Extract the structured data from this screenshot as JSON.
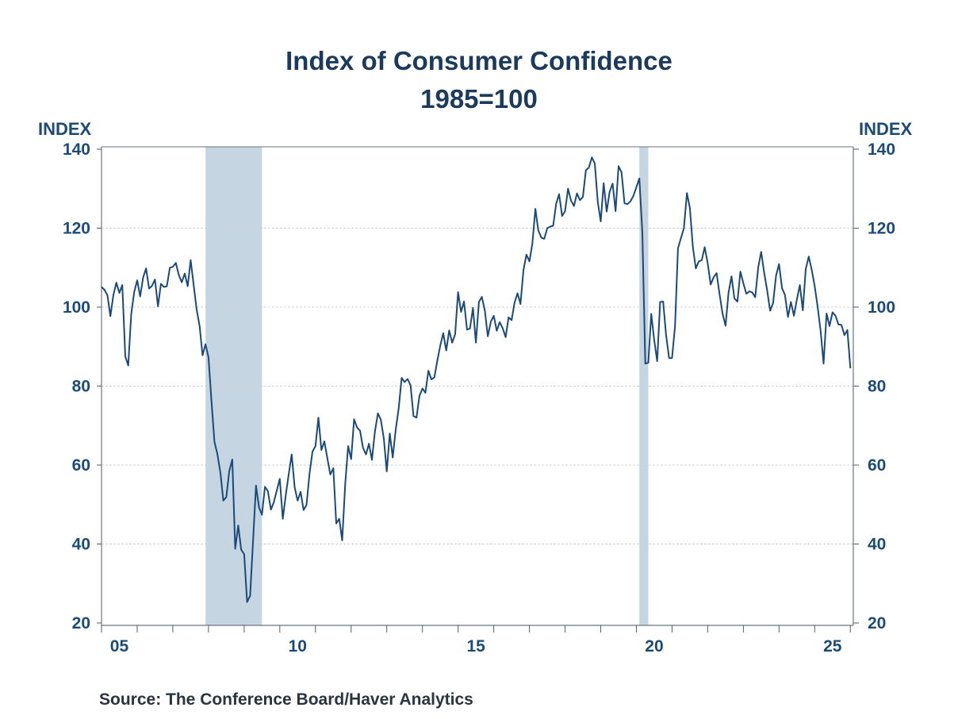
{
  "title": "Index of Consumer Confidence",
  "subtitle": "1985=100",
  "source": "Source:  The Conference Board/Haver Analytics",
  "colors": {
    "line": "#1b4a78",
    "recession": "#c5d6e2",
    "text": "#1d4b78"
  },
  "chart_data": {
    "type": "line",
    "title": "Index of Consumer Confidence",
    "subtitle": "1985=100",
    "ylabel_left": "INDEX",
    "ylabel_right": "INDEX",
    "ylim": [
      20,
      140
    ],
    "yticks": [
      20,
      40,
      60,
      80,
      100,
      120,
      140
    ],
    "xlim": [
      "2005-01",
      "2026-02"
    ],
    "xtick_labels": [
      {
        "year": 2005,
        "label": "05"
      },
      {
        "year": 2010,
        "label": "10"
      },
      {
        "year": 2015,
        "label": "15"
      },
      {
        "year": 2020,
        "label": "20"
      },
      {
        "year": 2025,
        "label": "25"
      }
    ],
    "grid": "horizontal dashed",
    "recessions": [
      {
        "start": "2007-12",
        "end": "2009-06"
      },
      {
        "start": "2020-02",
        "end": "2020-04"
      }
    ],
    "frequency": "monthly",
    "start": "2005-01",
    "values": [
      105.1,
      104.4,
      103.0,
      97.7,
      103.1,
      106.2,
      103.6,
      105.6,
      87.5,
      85.2,
      98.3,
      103.8,
      106.8,
      102.7,
      107.5,
      109.8,
      104.7,
      105.4,
      107.0,
      100.2,
      105.9,
      105.1,
      105.3,
      110.0,
      110.2,
      111.2,
      108.2,
      106.3,
      108.5,
      105.3,
      111.9,
      105.6,
      99.5,
      95.2,
      87.8,
      90.6,
      87.3,
      76.4,
      65.9,
      62.8,
      58.1,
      51.0,
      51.9,
      58.5,
      61.4,
      38.8,
      44.7,
      38.6,
      37.4,
      25.3,
      26.9,
      40.8,
      54.8,
      49.3,
      47.4,
      54.5,
      53.4,
      48.7,
      50.6,
      53.6,
      56.5,
      46.4,
      52.3,
      57.7,
      62.7,
      54.3,
      51.0,
      53.2,
      48.6,
      49.9,
      57.8,
      63.4,
      64.8,
      72.0,
      63.8,
      66.0,
      61.7,
      57.6,
      59.2,
      45.2,
      46.4,
      40.9,
      55.2,
      64.8,
      61.5,
      71.6,
      69.5,
      68.7,
      64.4,
      62.7,
      65.4,
      61.3,
      68.4,
      73.1,
      71.5,
      66.7,
      58.4,
      68.0,
      61.9,
      69.0,
      74.3,
      82.1,
      81.0,
      81.8,
      80.2,
      72.4,
      72.0,
      77.5,
      79.4,
      78.3,
      83.9,
      81.7,
      82.2,
      86.4,
      90.3,
      93.4,
      89.0,
      94.1,
      91.0,
      93.1,
      103.8,
      98.8,
      101.4,
      94.3,
      94.6,
      99.8,
      91.0,
      101.3,
      102.6,
      99.1,
      92.6,
      96.3,
      97.8,
      94.0,
      96.2,
      94.7,
      92.4,
      97.4,
      96.7,
      101.1,
      103.5,
      100.8,
      109.4,
      113.3,
      111.6,
      116.1,
      124.9,
      119.4,
      117.6,
      117.3,
      120.0,
      120.4,
      120.6,
      126.2,
      128.6,
      123.1,
      124.3,
      130.0,
      127.0,
      125.6,
      128.8,
      127.1,
      127.9,
      134.7,
      135.3,
      137.9,
      136.4,
      126.6,
      121.7,
      131.4,
      124.2,
      129.2,
      131.3,
      124.3,
      135.7,
      134.2,
      126.3,
      126.1,
      126.8,
      128.2,
      130.4,
      132.6,
      118.8,
      85.7,
      85.9,
      98.3,
      91.7,
      86.3,
      101.3,
      101.4,
      92.9,
      87.1,
      87.1,
      95.2,
      114.9,
      117.5,
      120.0,
      128.9,
      125.1,
      115.2,
      109.8,
      111.6,
      111.9,
      115.2,
      111.1,
      105.7,
      107.6,
      108.6,
      103.2,
      98.4,
      95.3,
      103.6,
      107.8,
      102.2,
      101.4,
      109.0,
      106.0,
      103.4,
      104.0,
      103.7,
      102.5,
      110.1,
      114.0,
      108.7,
      104.3,
      99.1,
      101.0,
      108.0,
      110.9,
      104.8,
      103.1,
      97.5,
      101.3,
      97.8,
      101.9,
      105.6,
      99.2,
      109.6,
      112.8,
      109.5,
      105.3,
      100.1,
      93.9,
      85.7,
      98.4,
      95.2,
      98.7,
      97.8,
      95.6,
      95.5,
      92.9,
      94.2,
      84.5
    ]
  }
}
